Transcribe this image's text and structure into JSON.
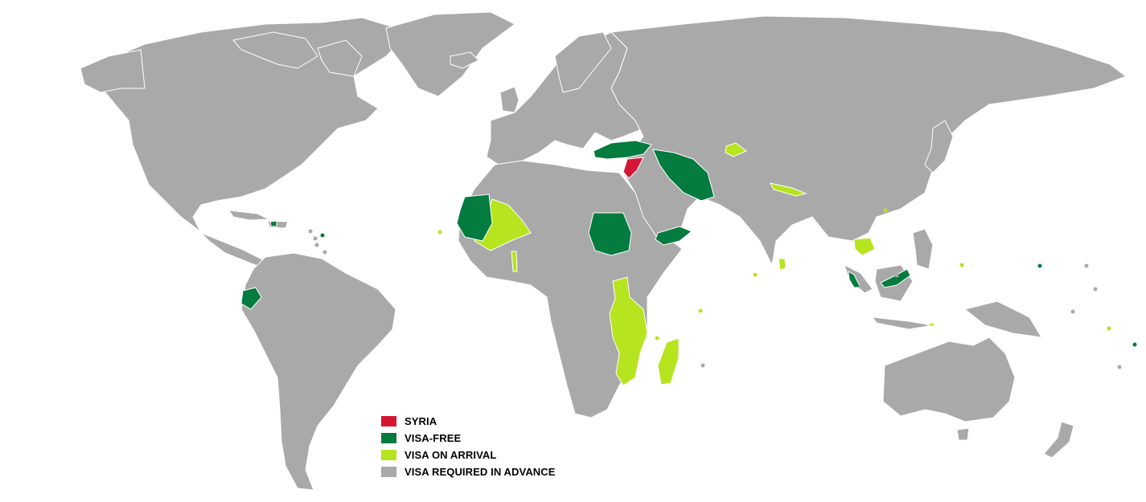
{
  "colors": {
    "ocean": "#ffffff",
    "land": "#a9a9a9",
    "border": "#ffffff",
    "syria": "#d41634",
    "visa_free": "#047b3f",
    "visa_on_arrival": "#b6e41f"
  },
  "legend": [
    {
      "label": "SYRIA",
      "color": "#d41634"
    },
    {
      "label": "VISA-FREE",
      "color": "#047b3f"
    },
    {
      "label": "VISA ON ARRIVAL",
      "color": "#b6e41f"
    },
    {
      "label": "VISA REQUIRED IN ADVANCE",
      "color": "#a9a9a9"
    }
  ]
}
